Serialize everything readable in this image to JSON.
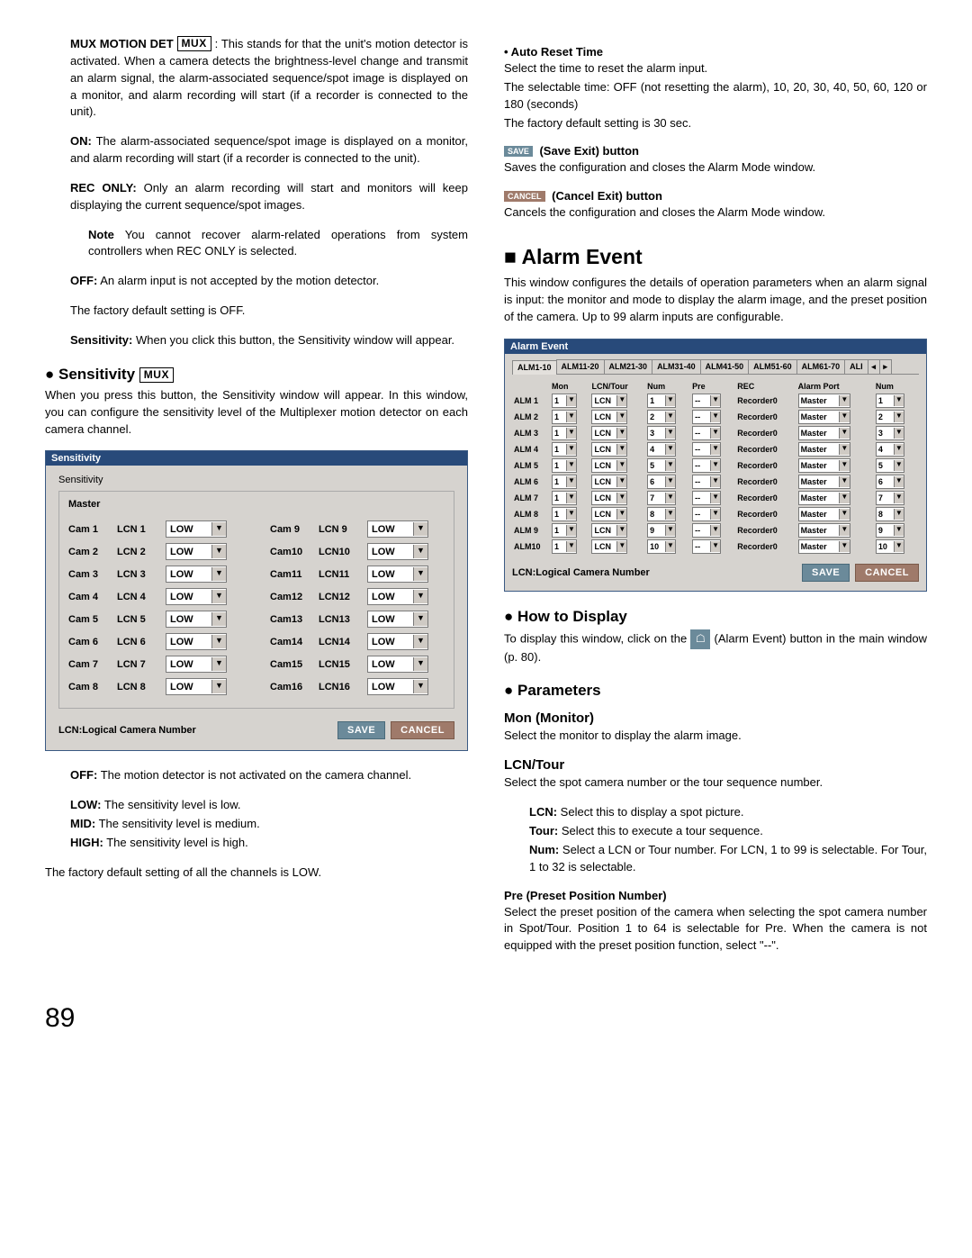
{
  "pageNumber": "89",
  "muxBadge": "MUX",
  "left": {
    "muxMotion": {
      "lead": "MUX MOTION DET",
      "body": ": This stands for that the unit's motion detector is activated. When a camera detects the brightness-level change and transmit an alarm signal, the alarm-associated sequence/spot image is displayed on a monitor, and alarm recording will start (if a recorder is connected to the unit).",
      "onLead": "ON:",
      "onBody": "The alarm-associated sequence/spot image is displayed on a monitor, and alarm recording will start (if a recorder is connected to the unit).",
      "recLead": "REC ONLY:",
      "recBody": "Only an alarm recording will start and monitors will keep displaying the current sequence/spot images.",
      "noteLead": "Note",
      "noteBody": "You cannot recover alarm-related operations from system controllers when REC ONLY is selected.",
      "offLead": "OFF:",
      "offBody": "An alarm input is not accepted by the motion detector.",
      "factory": "The factory default setting is OFF.",
      "sensLead": "Sensitivity:",
      "sensBody": "When you click this button, the Sensitivity window will appear."
    },
    "sensitivity": {
      "heading": "Sensitivity",
      "intro": "When you press this button, the Sensitivity window will appear. In this window, you can configure the sensitivity level of the Multiplexer motion detector on each camera channel.",
      "win": {
        "title": "Sensitivity",
        "fieldset": "Sensitivity",
        "master": "Master",
        "lcnNote": "LCN:Logical Camera Number",
        "save": "SAVE",
        "cancel": "CANCEL",
        "rowsLeft": [
          {
            "cam": "Cam 1",
            "lcn": "LCN 1",
            "val": "LOW"
          },
          {
            "cam": "Cam 2",
            "lcn": "LCN 2",
            "val": "LOW"
          },
          {
            "cam": "Cam 3",
            "lcn": "LCN 3",
            "val": "LOW"
          },
          {
            "cam": "Cam 4",
            "lcn": "LCN 4",
            "val": "LOW"
          },
          {
            "cam": "Cam 5",
            "lcn": "LCN 5",
            "val": "LOW"
          },
          {
            "cam": "Cam 6",
            "lcn": "LCN 6",
            "val": "LOW"
          },
          {
            "cam": "Cam 7",
            "lcn": "LCN 7",
            "val": "LOW"
          },
          {
            "cam": "Cam 8",
            "lcn": "LCN 8",
            "val": "LOW"
          }
        ],
        "rowsRight": [
          {
            "cam": "Cam 9",
            "lcn": "LCN 9",
            "val": "LOW"
          },
          {
            "cam": "Cam10",
            "lcn": "LCN10",
            "val": "LOW"
          },
          {
            "cam": "Cam11",
            "lcn": "LCN11",
            "val": "LOW"
          },
          {
            "cam": "Cam12",
            "lcn": "LCN12",
            "val": "LOW"
          },
          {
            "cam": "Cam13",
            "lcn": "LCN13",
            "val": "LOW"
          },
          {
            "cam": "Cam14",
            "lcn": "LCN14",
            "val": "LOW"
          },
          {
            "cam": "Cam15",
            "lcn": "LCN15",
            "val": "LOW"
          },
          {
            "cam": "Cam16",
            "lcn": "LCN16",
            "val": "LOW"
          }
        ]
      },
      "levels": {
        "offLead": "OFF:",
        "offBody": "The motion detector is not activated on the camera channel.",
        "lowLead": "LOW:",
        "lowBody": "The sensitivity level is low.",
        "midLead": "MID:",
        "midBody": "The sensitivity level is medium.",
        "highLead": "HIGH:",
        "highBody": "The sensitivity level is high.",
        "factory": "The factory default setting of all the channels is LOW."
      }
    }
  },
  "right": {
    "autoReset": {
      "heading": "• Auto Reset Time",
      "l1": "Select the time to reset the alarm input.",
      "l2": "The selectable time: OFF (not resetting the alarm), 10, 20, 30, 40, 50, 60, 120 or 180 (seconds)",
      "l3": "The factory default setting is 30 sec."
    },
    "saveExit": {
      "btn": "SAVE",
      "heading": "(Save Exit) button",
      "body": "Saves the configuration and closes the Alarm Mode window."
    },
    "cancelExit": {
      "btn": "CANCEL",
      "heading": "(Cancel Exit) button",
      "body": "Cancels the configuration and closes the Alarm Mode window."
    },
    "alarmEvent": {
      "heading": "Alarm Event",
      "intro": "This window configures the details of operation parameters when an alarm signal is input: the monitor and mode to display the alarm image, and the preset position of the camera. Up to 99 alarm inputs are configurable.",
      "win": {
        "title": "Alarm Event",
        "tabs": [
          "ALM1-10",
          "ALM11-20",
          "ALM21-30",
          "ALM31-40",
          "ALM41-50",
          "ALM51-60",
          "ALM61-70",
          "ALI"
        ],
        "headers": [
          "",
          "Mon",
          "LCN/Tour",
          "Num",
          "Pre",
          "REC",
          "Alarm Port",
          "Num"
        ],
        "lcnNote": "LCN:Logical Camera Number",
        "save": "SAVE",
        "cancel": "CANCEL",
        "rows": [
          {
            "alm": "ALM 1",
            "mon": "1",
            "lcn": "LCN",
            "num": "1",
            "pre": "--",
            "rec": "Recorder0",
            "port": "Master",
            "pnum": "1"
          },
          {
            "alm": "ALM 2",
            "mon": "1",
            "lcn": "LCN",
            "num": "2",
            "pre": "--",
            "rec": "Recorder0",
            "port": "Master",
            "pnum": "2"
          },
          {
            "alm": "ALM 3",
            "mon": "1",
            "lcn": "LCN",
            "num": "3",
            "pre": "--",
            "rec": "Recorder0",
            "port": "Master",
            "pnum": "3"
          },
          {
            "alm": "ALM 4",
            "mon": "1",
            "lcn": "LCN",
            "num": "4",
            "pre": "--",
            "rec": "Recorder0",
            "port": "Master",
            "pnum": "4"
          },
          {
            "alm": "ALM 5",
            "mon": "1",
            "lcn": "LCN",
            "num": "5",
            "pre": "--",
            "rec": "Recorder0",
            "port": "Master",
            "pnum": "5"
          },
          {
            "alm": "ALM 6",
            "mon": "1",
            "lcn": "LCN",
            "num": "6",
            "pre": "--",
            "rec": "Recorder0",
            "port": "Master",
            "pnum": "6"
          },
          {
            "alm": "ALM 7",
            "mon": "1",
            "lcn": "LCN",
            "num": "7",
            "pre": "--",
            "rec": "Recorder0",
            "port": "Master",
            "pnum": "7"
          },
          {
            "alm": "ALM 8",
            "mon": "1",
            "lcn": "LCN",
            "num": "8",
            "pre": "--",
            "rec": "Recorder0",
            "port": "Master",
            "pnum": "8"
          },
          {
            "alm": "ALM 9",
            "mon": "1",
            "lcn": "LCN",
            "num": "9",
            "pre": "--",
            "rec": "Recorder0",
            "port": "Master",
            "pnum": "9"
          },
          {
            "alm": "ALM10",
            "mon": "1",
            "lcn": "LCN",
            "num": "10",
            "pre": "--",
            "rec": "Recorder0",
            "port": "Master",
            "pnum": "10"
          }
        ]
      },
      "howTo": {
        "heading": "How to Display",
        "pre": "To display this window, click on the ",
        "post": " (Alarm Event) button in the main window (p. 80)."
      },
      "params": {
        "heading": "Parameters",
        "monHeading": "Mon (Monitor)",
        "monBody": "Select the monitor to display the alarm image.",
        "lcnHeading": "LCN/Tour",
        "lcnBody": "Select the spot camera number or the tour sequence number.",
        "lcnLead": "LCN:",
        "lcnDesc": "Select this to display a spot picture.",
        "tourLead": "Tour:",
        "tourDesc": "Select this to execute a tour sequence.",
        "numLead": "Num:",
        "numDesc": "Select a LCN or Tour number. For LCN, 1 to 99 is selectable. For Tour, 1 to 32 is selectable.",
        "preHeading": "Pre (Preset Position Number)",
        "preBody": "Select the preset position of the camera when selecting the spot camera number in Spot/Tour. Position 1 to 64 is selectable for Pre. When the camera is not equipped with the preset position function, select \"--\"."
      }
    }
  }
}
